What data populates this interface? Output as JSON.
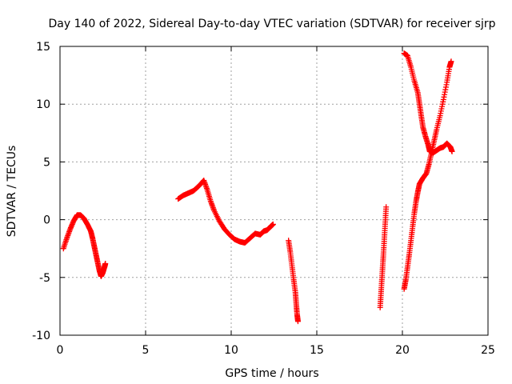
{
  "chart_data": {
    "type": "scatter",
    "title": "Day 140 of 2022, Sidereal Day-to-day VTEC variation (SDTVAR) for receiver sjrp",
    "xlabel": "GPS time / hours",
    "ylabel": "SDTVAR / TECUs",
    "xlim": [
      0,
      25
    ],
    "ylim": [
      -10,
      15
    ],
    "x_ticks": [
      0,
      5,
      10,
      15,
      20,
      25
    ],
    "y_ticks": [
      -10,
      -5,
      0,
      5,
      10,
      15
    ],
    "x_tick_labels": [
      "0",
      "5",
      "10",
      "15",
      "20",
      "25"
    ],
    "y_tick_labels": [
      "-10",
      "-5",
      "0",
      "5",
      "10",
      "15"
    ],
    "grid": true,
    "marker": "+",
    "color": "#ff0000",
    "series": [
      {
        "points": [
          [
            0.2,
            -2.5
          ],
          [
            0.4,
            -1.6
          ],
          [
            0.6,
            -0.8
          ],
          [
            0.8,
            -0.1
          ],
          [
            1.0,
            0.4
          ],
          [
            1.2,
            0.4
          ],
          [
            1.4,
            0.1
          ],
          [
            1.6,
            -0.4
          ],
          [
            1.8,
            -1.0
          ],
          [
            1.9,
            -1.6
          ],
          [
            2.0,
            -2.3
          ],
          [
            2.1,
            -3.0
          ],
          [
            2.2,
            -3.7
          ],
          [
            2.3,
            -4.4
          ],
          [
            2.4,
            -4.9
          ],
          [
            2.5,
            -4.6
          ],
          [
            2.6,
            -4.1
          ],
          [
            2.65,
            -3.8
          ]
        ]
      },
      {
        "points": [
          [
            6.9,
            1.8
          ],
          [
            7.2,
            2.1
          ],
          [
            7.5,
            2.3
          ],
          [
            7.8,
            2.5
          ],
          [
            8.1,
            2.9
          ],
          [
            8.4,
            3.4
          ],
          [
            8.6,
            2.6
          ],
          [
            8.8,
            1.6
          ],
          [
            9.0,
            0.8
          ],
          [
            9.3,
            -0.1
          ],
          [
            9.6,
            -0.8
          ],
          [
            9.9,
            -1.3
          ],
          [
            10.2,
            -1.7
          ],
          [
            10.5,
            -1.9
          ],
          [
            10.8,
            -2.0
          ],
          [
            11.1,
            -1.6
          ],
          [
            11.4,
            -1.2
          ],
          [
            11.7,
            -1.3
          ],
          [
            11.9,
            -1.0
          ],
          [
            12.1,
            -0.9
          ],
          [
            12.3,
            -0.6
          ],
          [
            12.45,
            -0.4
          ]
        ]
      },
      {
        "points": [
          [
            13.35,
            -1.8
          ],
          [
            13.45,
            -2.8
          ],
          [
            13.55,
            -4.0
          ],
          [
            13.65,
            -5.2
          ],
          [
            13.75,
            -6.3
          ],
          [
            13.8,
            -7.3
          ],
          [
            13.85,
            -8.2
          ],
          [
            13.9,
            -8.8
          ]
        ]
      },
      {
        "points": [
          [
            18.7,
            -7.6
          ],
          [
            18.75,
            -6.4
          ],
          [
            18.8,
            -5.2
          ],
          [
            18.85,
            -4.0
          ],
          [
            18.9,
            -2.8
          ],
          [
            18.95,
            -1.5
          ],
          [
            19.0,
            -0.2
          ],
          [
            19.05,
            1.1
          ]
        ]
      },
      {
        "points": [
          [
            20.1,
            14.4
          ],
          [
            20.3,
            14.2
          ],
          [
            20.5,
            13.2
          ],
          [
            20.7,
            12.0
          ],
          [
            20.9,
            11.0
          ],
          [
            21.0,
            10.0
          ],
          [
            21.1,
            9.0
          ],
          [
            21.2,
            8.0
          ],
          [
            21.35,
            7.2
          ],
          [
            21.5,
            6.5
          ],
          [
            21.6,
            5.9
          ],
          [
            21.8,
            5.8
          ],
          [
            22.0,
            6.0
          ],
          [
            22.2,
            6.2
          ],
          [
            22.4,
            6.3
          ],
          [
            22.6,
            6.6
          ],
          [
            22.8,
            6.3
          ],
          [
            22.9,
            5.9
          ]
        ]
      },
      {
        "points": [
          [
            20.1,
            -6.0
          ],
          [
            20.2,
            -5.2
          ],
          [
            20.3,
            -4.1
          ],
          [
            20.4,
            -3.0
          ],
          [
            20.5,
            -1.8
          ],
          [
            20.6,
            -0.6
          ],
          [
            20.7,
            0.6
          ],
          [
            20.8,
            1.6
          ],
          [
            20.9,
            2.4
          ],
          [
            21.0,
            3.1
          ],
          [
            21.2,
            3.6
          ],
          [
            21.4,
            4.0
          ],
          [
            21.55,
            4.8
          ],
          [
            21.7,
            5.8
          ],
          [
            21.85,
            6.8
          ],
          [
            22.0,
            7.8
          ],
          [
            22.2,
            9.0
          ],
          [
            22.4,
            10.4
          ],
          [
            22.6,
            11.9
          ],
          [
            22.75,
            13.2
          ],
          [
            22.85,
            13.7
          ]
        ]
      }
    ]
  }
}
